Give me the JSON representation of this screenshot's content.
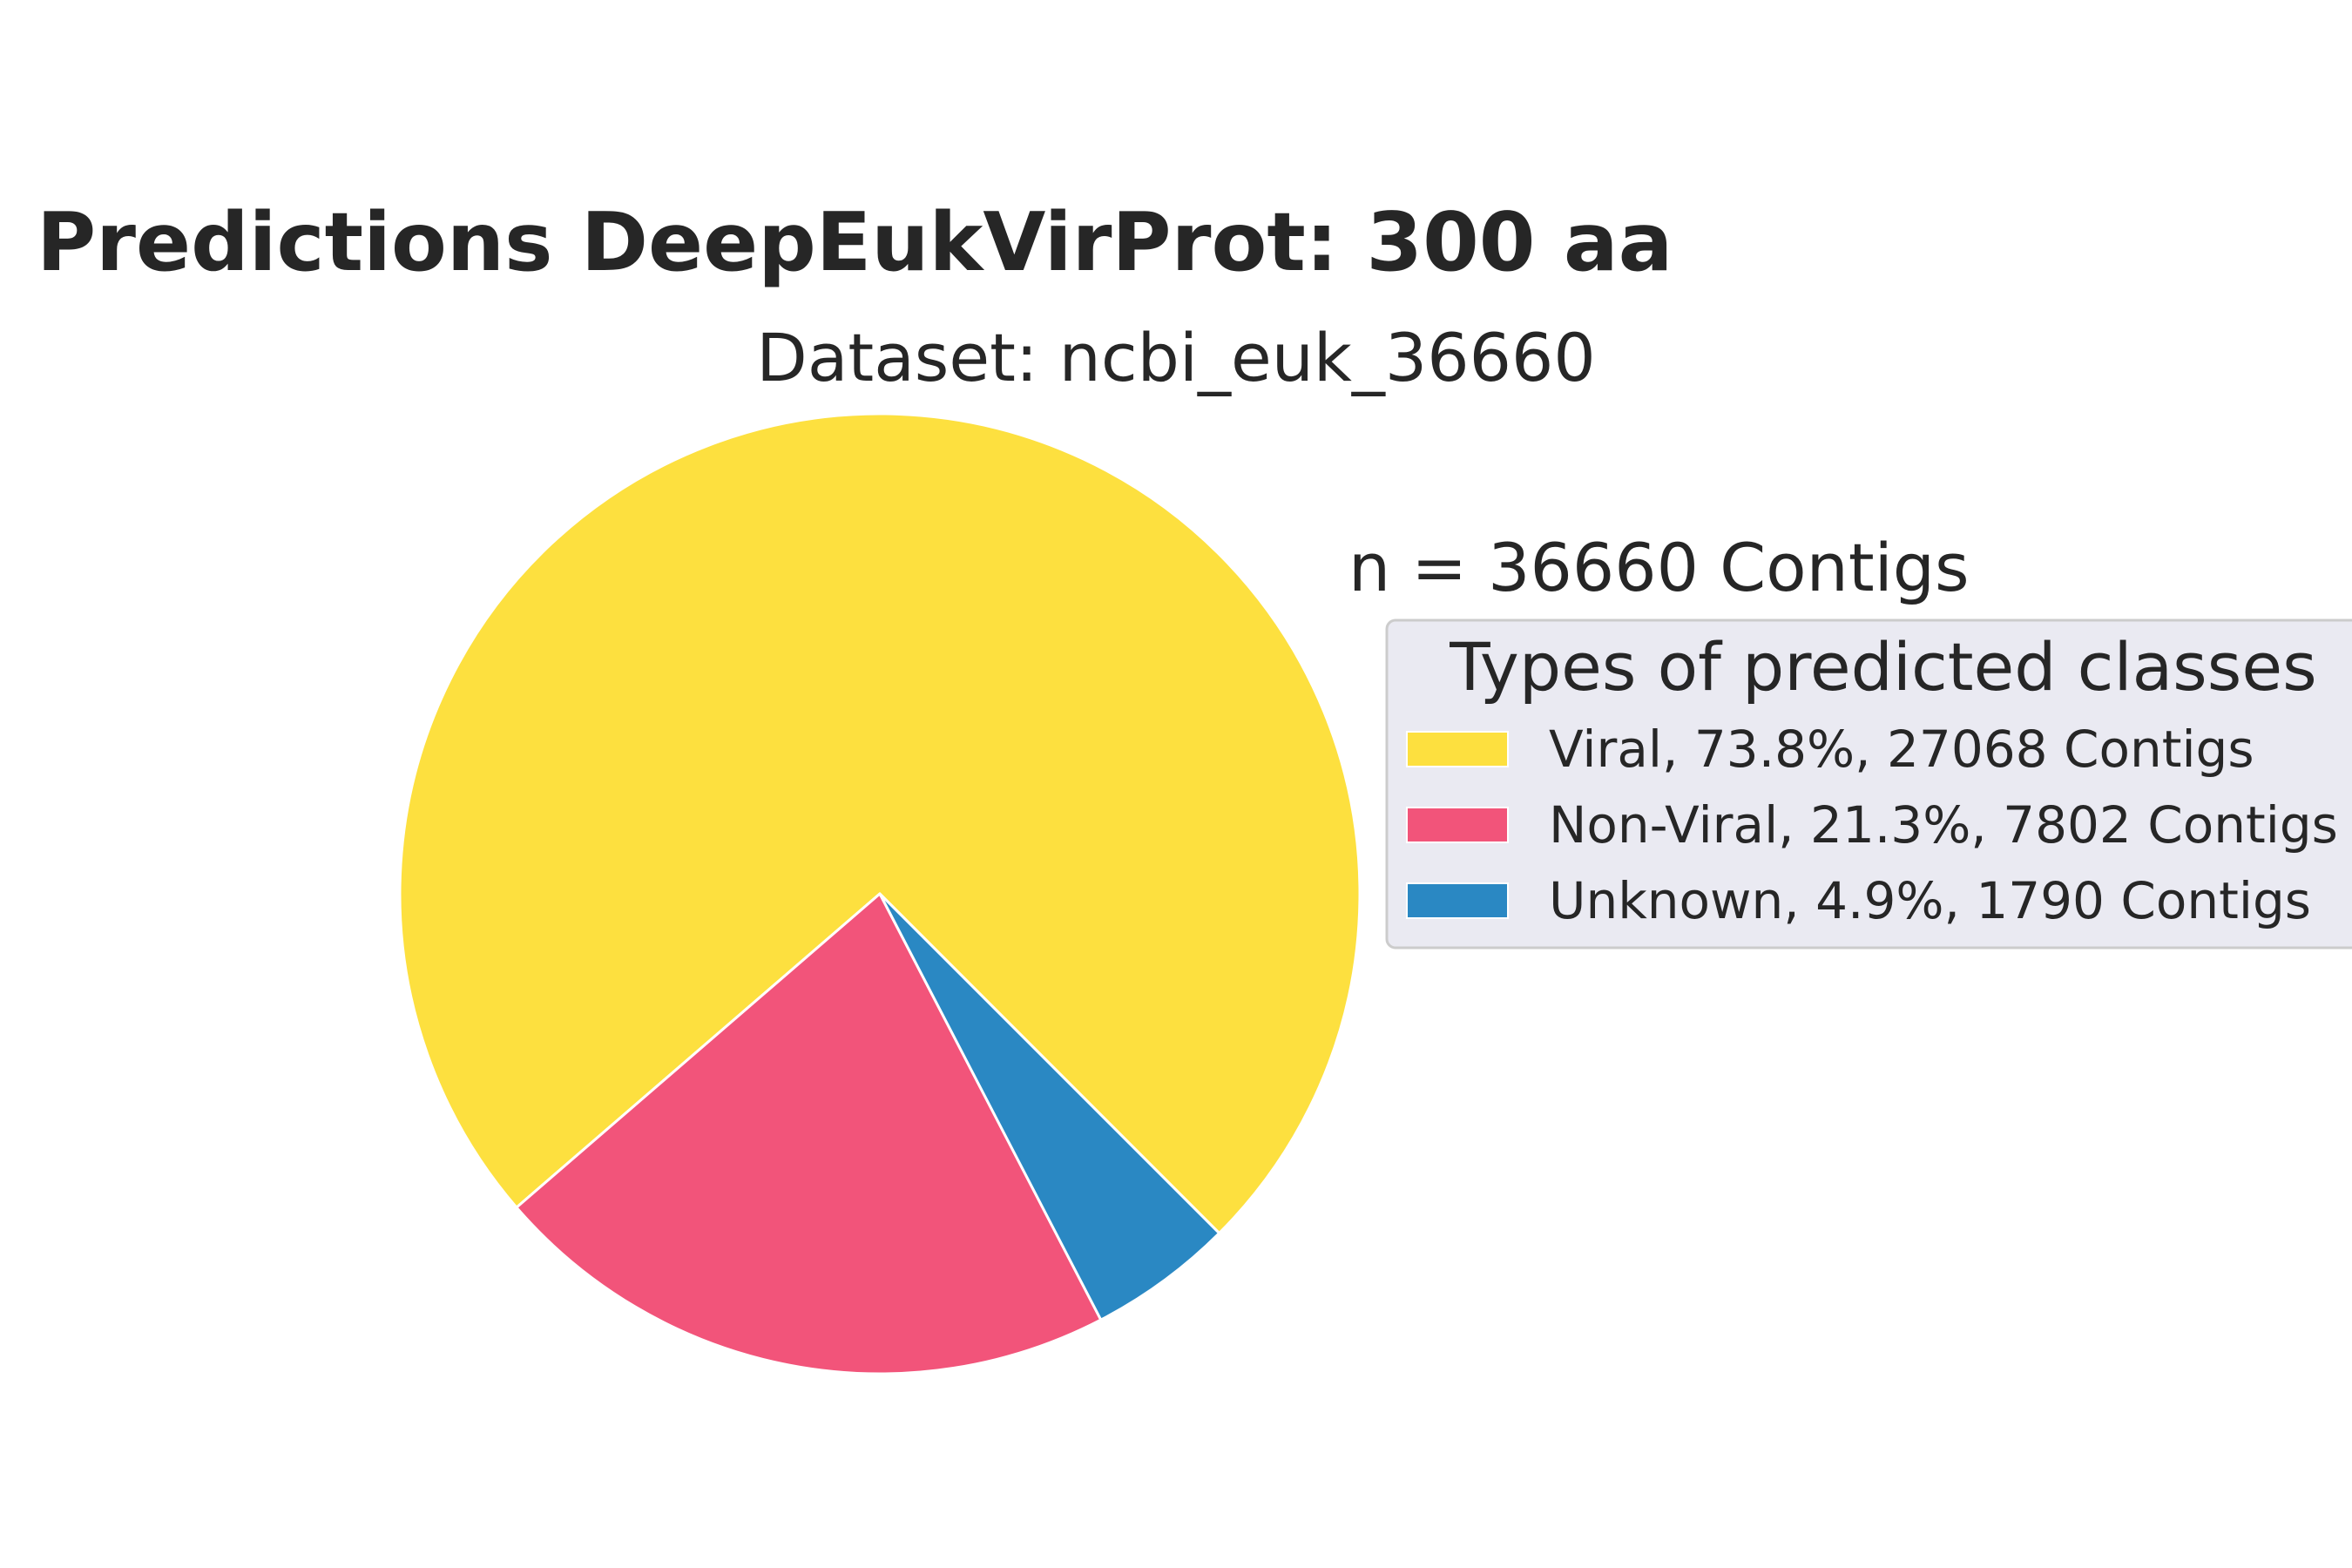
{
  "chart_data": {
    "type": "pie",
    "title": "Predictions DeepEukVirProt: 300 aa",
    "subtitle": "Dataset: ncbi_euk_36660",
    "annotation": "n = 36660 Contigs",
    "legend": {
      "title": "Types of predicted classes",
      "placement": "right",
      "background": "#eaeaf2"
    },
    "slices": [
      {
        "name": "Viral",
        "value": 27068,
        "percent": 73.8,
        "color": "#fde03f",
        "label": "Viral, 73.8%, 27068 Contigs"
      },
      {
        "name": "Non-Viral",
        "value": 7802,
        "percent": 21.3,
        "color": "#f2547a",
        "label": "Non-Viral, 21.3%, 7802 Contigs"
      },
      {
        "name": "Unknown",
        "value": 1790,
        "percent": 4.9,
        "color": "#2a88c3",
        "label": "Unknown, 4.9%, 1790 Contigs"
      }
    ],
    "start_angle_deg": -45,
    "direction": "counterclockwise",
    "wedge_edge_color": "#ffffff"
  }
}
